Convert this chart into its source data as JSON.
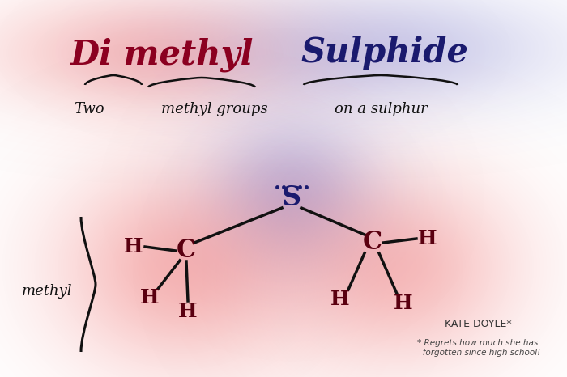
{
  "bg_color": "#ffffff",
  "red_blob_color": [
    240,
    120,
    120
  ],
  "blue_blob_color": [
    140,
    140,
    210
  ],
  "atom_color": "#5a0010",
  "sulfur_color": "#1a1a6e",
  "bond_color": "#111111",
  "annotation_color": "#111111",
  "author": "KATE DOYLE*",
  "footnote": "* Regrets how much she has\n   forgotten since high school!",
  "title_red": "Di methyl",
  "title_blue": "Sulphide",
  "subtitle_left": "Two",
  "subtitle_mid": "methyl groups",
  "subtitle_right": "on a sulphur",
  "methyl_label": "methyl"
}
